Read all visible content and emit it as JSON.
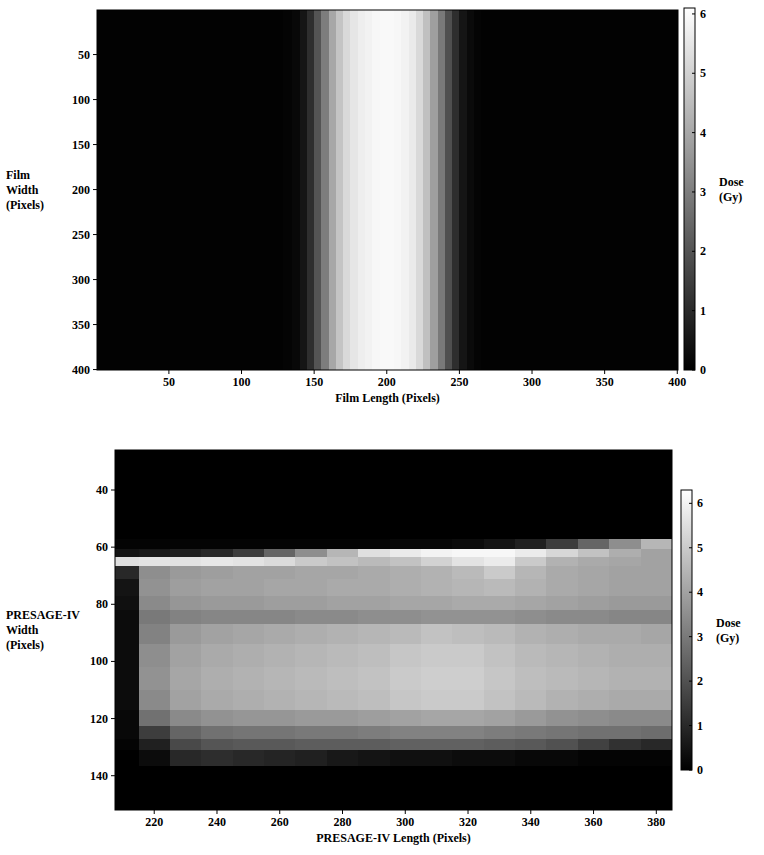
{
  "chart_data": [
    {
      "type": "heatmap",
      "x_label": "Film Length (Pixels)",
      "y_label": "Film Width (Pixels)",
      "xlim": [
        0.5,
        400.5
      ],
      "ylim": [
        0.5,
        400.5
      ],
      "xticks": [
        50,
        100,
        150,
        200,
        250,
        300,
        350,
        400
      ],
      "yticks": [
        50,
        100,
        150,
        200,
        250,
        300,
        350,
        400
      ],
      "x": [
        5,
        15,
        25,
        35,
        45,
        55,
        65,
        75,
        85,
        95,
        105,
        115,
        125,
        132.5,
        137.5,
        142.5,
        147.5,
        152.5,
        157.5,
        162.5,
        167.5,
        172.5,
        177.5,
        182.5,
        187.5,
        192.5,
        197.5,
        202.5,
        207.5,
        212.5,
        217.5,
        222.5,
        227.5,
        232.5,
        237.5,
        242.5,
        247.5,
        252.5,
        257.5,
        262.5,
        267.5,
        275,
        285,
        295,
        305,
        315,
        325,
        335,
        345,
        355,
        365,
        375,
        385,
        395
      ],
      "y": [
        200.5
      ],
      "values": [
        [
          0.05,
          0.05,
          0.05,
          0.05,
          0.05,
          0.05,
          0.05,
          0.05,
          0.05,
          0.05,
          0.05,
          0.05,
          0.05,
          0.1,
          0.2,
          0.5,
          1.1,
          2.0,
          3.0,
          4.0,
          4.7,
          5.2,
          5.5,
          5.7,
          5.8,
          5.9,
          5.95,
          5.95,
          5.9,
          5.8,
          5.6,
          5.2,
          4.6,
          3.8,
          2.9,
          1.9,
          1.1,
          0.5,
          0.25,
          0.1,
          0.05,
          0.05,
          0.05,
          0.05,
          0.05,
          0.05,
          0.05,
          0.05,
          0.05,
          0.05,
          0.05,
          0.05,
          0.05,
          0.05
        ]
      ],
      "colorbar": {
        "label": "Dose (Gy)",
        "range": [
          0,
          6.1
        ],
        "ticks": [
          0,
          1,
          2,
          3,
          4,
          5,
          6
        ]
      }
    },
    {
      "type": "heatmap",
      "x_label": "PRESAGE-IV Length (Pixels)",
      "y_label": "PRESAGE-IV Width (Pixels)",
      "xlim": [
        207.5,
        385
      ],
      "ylim": [
        26,
        152
      ],
      "xticks": [
        220,
        240,
        260,
        280,
        300,
        320,
        340,
        360,
        380
      ],
      "yticks": [
        40,
        60,
        80,
        100,
        120,
        140
      ],
      "x": [
        210,
        220,
        230,
        240,
        250,
        260,
        270,
        280,
        290,
        300,
        310,
        320,
        330,
        340,
        350,
        360,
        370,
        380
      ],
      "y": [
        32,
        45,
        55,
        59,
        62,
        65,
        68,
        74,
        80,
        84,
        90,
        98,
        106,
        114,
        120,
        125,
        129,
        133,
        140,
        148
      ],
      "values": [
        [
          0,
          0,
          0,
          0,
          0,
          0,
          0,
          0,
          0,
          0,
          0,
          0,
          0,
          0,
          0,
          0,
          0,
          0
        ],
        [
          0,
          0,
          0,
          0,
          0,
          0,
          0,
          0,
          0,
          0,
          0,
          0,
          0,
          0,
          0,
          0,
          0,
          0
        ],
        [
          0,
          0,
          0,
          0,
          0,
          0,
          0,
          0,
          0,
          0,
          0,
          0,
          0,
          0,
          0,
          0,
          0,
          0
        ],
        [
          0.1,
          0.1,
          0.1,
          0.1,
          0.1,
          0.1,
          0.1,
          0.1,
          0.1,
          0.2,
          0.2,
          0.3,
          0.5,
          0.8,
          1.5,
          2.5,
          3.5,
          4.5
        ],
        [
          0.5,
          0.6,
          0.8,
          1.0,
          1.5,
          2.5,
          3.5,
          4.5,
          5.5,
          5.8,
          6.0,
          6.1,
          6.1,
          5.8,
          5.3,
          4.8,
          4.3,
          4.0
        ],
        [
          5.5,
          5.6,
          5.6,
          5.7,
          5.6,
          5.4,
          5.0,
          4.8,
          4.6,
          4.8,
          5.2,
          5.6,
          5.8,
          5.0,
          4.4,
          4.2,
          4.1,
          4.0
        ],
        [
          1.0,
          3.5,
          3.8,
          3.9,
          4.0,
          4.0,
          4.1,
          4.1,
          4.2,
          4.3,
          4.4,
          4.6,
          5.0,
          4.5,
          4.2,
          4.1,
          4.0,
          4.0
        ],
        [
          0.5,
          3.6,
          3.9,
          4.0,
          4.0,
          4.1,
          4.1,
          4.2,
          4.2,
          4.3,
          4.4,
          4.5,
          4.6,
          4.4,
          4.2,
          4.1,
          4.0,
          4.0
        ],
        [
          0.4,
          3.4,
          3.7,
          3.8,
          3.8,
          3.9,
          3.9,
          4.0,
          4.0,
          4.1,
          4.1,
          4.2,
          4.2,
          4.1,
          4.0,
          3.9,
          3.8,
          3.8
        ],
        [
          0.3,
          3.0,
          3.2,
          3.3,
          3.3,
          3.3,
          3.4,
          3.4,
          3.5,
          3.5,
          3.6,
          3.6,
          3.6,
          3.5,
          3.4,
          3.4,
          3.3,
          3.3
        ],
        [
          0.3,
          3.2,
          3.8,
          4.0,
          4.1,
          4.2,
          4.3,
          4.4,
          4.5,
          4.6,
          4.8,
          4.7,
          4.6,
          4.4,
          4.3,
          4.2,
          4.2,
          4.1
        ],
        [
          0.3,
          3.5,
          4.0,
          4.2,
          4.3,
          4.4,
          4.5,
          4.6,
          4.7,
          4.9,
          5.0,
          5.0,
          4.8,
          4.6,
          4.5,
          4.4,
          4.3,
          4.3
        ],
        [
          0.3,
          3.6,
          4.1,
          4.3,
          4.4,
          4.5,
          4.6,
          4.7,
          4.8,
          5.0,
          5.1,
          5.1,
          4.9,
          4.7,
          4.6,
          4.5,
          4.4,
          4.4
        ],
        [
          0.3,
          3.4,
          4.0,
          4.2,
          4.3,
          4.4,
          4.5,
          4.6,
          4.7,
          4.9,
          5.0,
          5.0,
          4.8,
          4.6,
          4.4,
          4.3,
          4.2,
          4.2
        ],
        [
          0.2,
          2.8,
          3.4,
          3.6,
          3.7,
          3.7,
          3.8,
          3.8,
          3.9,
          4.0,
          4.1,
          4.1,
          4.0,
          3.8,
          3.6,
          3.5,
          3.4,
          3.4
        ],
        [
          0.2,
          1.5,
          2.5,
          2.8,
          2.9,
          2.9,
          3.0,
          3.0,
          3.1,
          3.2,
          3.2,
          3.2,
          3.1,
          3.0,
          2.9,
          2.8,
          2.8,
          2.7
        ],
        [
          0.1,
          0.8,
          1.8,
          2.1,
          2.2,
          2.2,
          2.3,
          2.3,
          2.3,
          2.4,
          2.4,
          2.4,
          2.3,
          2.2,
          2.0,
          1.6,
          1.2,
          1.0
        ],
        [
          0,
          0.3,
          1.0,
          1.1,
          1.0,
          0.9,
          0.8,
          0.6,
          0.5,
          0.4,
          0.4,
          0.3,
          0.3,
          0.2,
          0.2,
          0.1,
          0.1,
          0.1
        ],
        [
          0,
          0,
          0,
          0,
          0,
          0,
          0,
          0,
          0,
          0,
          0,
          0,
          0,
          0,
          0,
          0,
          0,
          0
        ],
        [
          0,
          0,
          0,
          0,
          0,
          0,
          0,
          0,
          0,
          0,
          0,
          0,
          0,
          0,
          0,
          0,
          0,
          0
        ]
      ],
      "colorbar": {
        "label": "Dose (Gy)",
        "range": [
          0,
          6.3
        ],
        "ticks": [
          0,
          1,
          2,
          3,
          4,
          5,
          6
        ]
      }
    }
  ]
}
